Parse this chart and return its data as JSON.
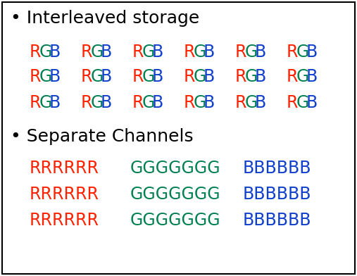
{
  "bg_color": "#ffffff",
  "border_color": "#000000",
  "title1": "• Interleaved storage",
  "title2": "• Separate Channels",
  "title_fontsize": 18,
  "title_color": "#000000",
  "title_weight": "normal",
  "rgb_fontsize": 17,
  "rgb_weight": "normal",
  "red": "#ff2200",
  "green": "#008050",
  "blue": "#1040cc",
  "r_text": "RRRRRR",
  "g_text": "GGGGGGG",
  "b_text": "BBBBBB"
}
